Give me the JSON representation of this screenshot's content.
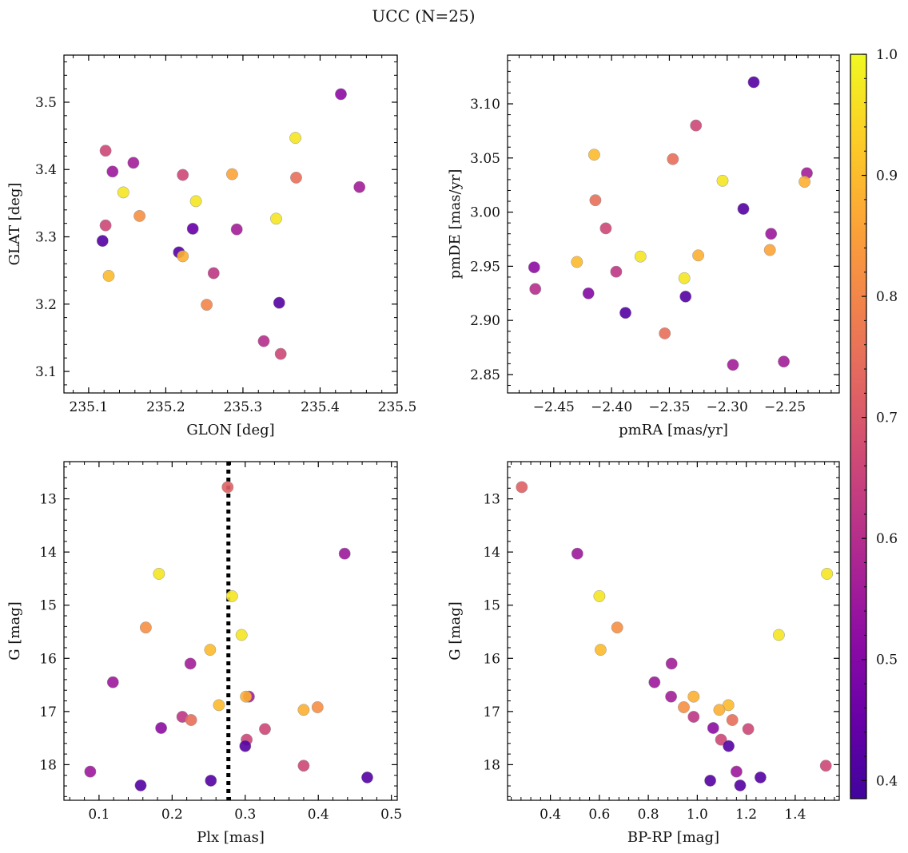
{
  "suptitle": "UCC (N=25)",
  "colorbar": {
    "range": [
      0.385,
      1.0
    ],
    "ticks": [
      0.4,
      0.5,
      0.6,
      0.7,
      0.8,
      0.9,
      1.0
    ],
    "tick_labels": [
      "0.4",
      "0.5",
      "0.6",
      "0.7",
      "0.8",
      "0.9",
      "1.0"
    ],
    "colormap": "plasma"
  },
  "chart_data": [
    {
      "type": "scatter",
      "xlabel": "GLON [deg]",
      "ylabel": "GLAT [deg]",
      "xlim": [
        235.068,
        235.5
      ],
      "ylim": [
        3.068,
        3.57
      ],
      "xticks": [
        235.1,
        235.2,
        235.3,
        235.4,
        235.5
      ],
      "xtick_labels": [
        "235.1",
        "235.2",
        "235.3",
        "235.4",
        "235.5"
      ],
      "yticks": [
        3.1,
        3.2,
        3.3,
        3.4,
        3.5
      ],
      "ytick_labels": [
        "3.1",
        "3.2",
        "3.3",
        "3.4",
        "3.5"
      ],
      "y_inverted": false,
      "points": [
        {
          "x": 235.427,
          "y": 3.512,
          "c": 0.52
        },
        {
          "x": 235.122,
          "y": 3.428,
          "c": 0.66
        },
        {
          "x": 235.368,
          "y": 3.447,
          "c": 0.97
        },
        {
          "x": 235.131,
          "y": 3.397,
          "c": 0.55
        },
        {
          "x": 235.158,
          "y": 3.41,
          "c": 0.56
        },
        {
          "x": 235.222,
          "y": 3.392,
          "c": 0.66
        },
        {
          "x": 235.286,
          "y": 3.393,
          "c": 0.86
        },
        {
          "x": 235.369,
          "y": 3.388,
          "c": 0.75
        },
        {
          "x": 235.451,
          "y": 3.374,
          "c": 0.56
        },
        {
          "x": 235.145,
          "y": 3.366,
          "c": 0.97
        },
        {
          "x": 235.239,
          "y": 3.353,
          "c": 0.97
        },
        {
          "x": 235.122,
          "y": 3.317,
          "c": 0.66
        },
        {
          "x": 235.166,
          "y": 3.331,
          "c": 0.82
        },
        {
          "x": 235.343,
          "y": 3.327,
          "c": 0.97
        },
        {
          "x": 235.118,
          "y": 3.294,
          "c": 0.42
        },
        {
          "x": 235.235,
          "y": 3.312,
          "c": 0.45
        },
        {
          "x": 235.292,
          "y": 3.311,
          "c": 0.56
        },
        {
          "x": 235.217,
          "y": 3.277,
          "c": 0.42
        },
        {
          "x": 235.222,
          "y": 3.271,
          "c": 0.88
        },
        {
          "x": 235.126,
          "y": 3.242,
          "c": 0.9
        },
        {
          "x": 235.262,
          "y": 3.246,
          "c": 0.62
        },
        {
          "x": 235.253,
          "y": 3.199,
          "c": 0.8
        },
        {
          "x": 235.347,
          "y": 3.202,
          "c": 0.42
        },
        {
          "x": 235.327,
          "y": 3.145,
          "c": 0.6
        },
        {
          "x": 235.349,
          "y": 3.126,
          "c": 0.66
        }
      ]
    },
    {
      "type": "scatter",
      "xlabel": "pmRA [mas/yr]",
      "ylabel": "pmDE [mas/yr]",
      "xlim": [
        -2.49,
        -2.203
      ],
      "ylim": [
        2.833,
        3.145
      ],
      "xticks": [
        -2.45,
        -2.4,
        -2.35,
        -2.3,
        -2.25
      ],
      "xtick_labels": [
        "−2.45",
        "−2.40",
        "−2.35",
        "−2.30",
        "−2.25"
      ],
      "yticks": [
        2.85,
        2.9,
        2.95,
        3.0,
        3.05,
        3.1
      ],
      "ytick_labels": [
        "2.85",
        "2.90",
        "2.95",
        "3.00",
        "3.05",
        "3.10"
      ],
      "y_inverted": false,
      "points": [
        {
          "x": -2.277,
          "y": 3.12,
          "c": 0.42
        },
        {
          "x": -2.327,
          "y": 3.08,
          "c": 0.66
        },
        {
          "x": -2.415,
          "y": 3.053,
          "c": 0.9
        },
        {
          "x": -2.347,
          "y": 3.049,
          "c": 0.75
        },
        {
          "x": -2.231,
          "y": 3.036,
          "c": 0.56
        },
        {
          "x": -2.233,
          "y": 3.028,
          "c": 0.88
        },
        {
          "x": -2.304,
          "y": 3.029,
          "c": 0.97
        },
        {
          "x": -2.414,
          "y": 3.011,
          "c": 0.75
        },
        {
          "x": -2.286,
          "y": 3.003,
          "c": 0.42
        },
        {
          "x": -2.405,
          "y": 2.985,
          "c": 0.66
        },
        {
          "x": -2.262,
          "y": 2.98,
          "c": 0.55
        },
        {
          "x": -2.263,
          "y": 2.965,
          "c": 0.86
        },
        {
          "x": -2.375,
          "y": 2.959,
          "c": 0.97
        },
        {
          "x": -2.325,
          "y": 2.96,
          "c": 0.88
        },
        {
          "x": -2.43,
          "y": 2.954,
          "c": 0.9
        },
        {
          "x": -2.467,
          "y": 2.949,
          "c": 0.52
        },
        {
          "x": -2.396,
          "y": 2.945,
          "c": 0.62
        },
        {
          "x": -2.337,
          "y": 2.939,
          "c": 0.97
        },
        {
          "x": -2.466,
          "y": 2.929,
          "c": 0.6
        },
        {
          "x": -2.42,
          "y": 2.925,
          "c": 0.5
        },
        {
          "x": -2.336,
          "y": 2.922,
          "c": 0.42
        },
        {
          "x": -2.388,
          "y": 2.907,
          "c": 0.42
        },
        {
          "x": -2.354,
          "y": 2.888,
          "c": 0.75
        },
        {
          "x": -2.295,
          "y": 2.859,
          "c": 0.56
        },
        {
          "x": -2.251,
          "y": 2.862,
          "c": 0.56
        }
      ]
    },
    {
      "type": "scatter",
      "xlabel": "Plx [mas]",
      "ylabel": "G [mag]",
      "xlim": [
        0.052,
        0.508
      ],
      "ylim": [
        18.67,
        12.3
      ],
      "xticks": [
        0.1,
        0.2,
        0.3,
        0.4,
        0.5
      ],
      "xtick_labels": [
        "0.1",
        "0.2",
        "0.3",
        "0.4",
        "0.5"
      ],
      "yticks": [
        13,
        14,
        15,
        16,
        17,
        18
      ],
      "ytick_labels": [
        "13",
        "14",
        "15",
        "16",
        "17",
        "18"
      ],
      "y_inverted": true,
      "vline": {
        "x": 0.277,
        "style": "dotted",
        "color": "#000000"
      },
      "points": [
        {
          "x": 0.276,
          "y": 12.78,
          "c": 0.72
        },
        {
          "x": 0.436,
          "y": 14.03,
          "c": 0.55
        },
        {
          "x": 0.182,
          "y": 14.41,
          "c": 0.97
        },
        {
          "x": 0.282,
          "y": 14.83,
          "c": 0.97
        },
        {
          "x": 0.164,
          "y": 15.42,
          "c": 0.82
        },
        {
          "x": 0.295,
          "y": 15.56,
          "c": 0.97
        },
        {
          "x": 0.252,
          "y": 15.84,
          "c": 0.9
        },
        {
          "x": 0.225,
          "y": 16.1,
          "c": 0.56
        },
        {
          "x": 0.119,
          "y": 16.45,
          "c": 0.55
        },
        {
          "x": 0.305,
          "y": 16.72,
          "c": 0.56
        },
        {
          "x": 0.301,
          "y": 16.72,
          "c": 0.88
        },
        {
          "x": 0.264,
          "y": 16.88,
          "c": 0.9
        },
        {
          "x": 0.399,
          "y": 16.92,
          "c": 0.82
        },
        {
          "x": 0.38,
          "y": 16.97,
          "c": 0.88
        },
        {
          "x": 0.214,
          "y": 17.1,
          "c": 0.62
        },
        {
          "x": 0.226,
          "y": 17.16,
          "c": 0.75
        },
        {
          "x": 0.185,
          "y": 17.31,
          "c": 0.52
        },
        {
          "x": 0.327,
          "y": 17.33,
          "c": 0.66
        },
        {
          "x": 0.302,
          "y": 17.53,
          "c": 0.66
        },
        {
          "x": 0.3,
          "y": 17.65,
          "c": 0.42
        },
        {
          "x": 0.38,
          "y": 18.02,
          "c": 0.66
        },
        {
          "x": 0.088,
          "y": 18.13,
          "c": 0.55
        },
        {
          "x": 0.467,
          "y": 18.24,
          "c": 0.42
        },
        {
          "x": 0.253,
          "y": 18.3,
          "c": 0.42
        },
        {
          "x": 0.157,
          "y": 18.39,
          "c": 0.42
        }
      ]
    },
    {
      "type": "scatter",
      "xlabel": "BP-RP [mag]",
      "ylabel": "G [mag]",
      "xlim": [
        0.225,
        1.58
      ],
      "ylim": [
        18.67,
        12.3
      ],
      "xticks": [
        0.4,
        0.6,
        0.8,
        1.0,
        1.2,
        1.4
      ],
      "xtick_labels": [
        "0.4",
        "0.6",
        "0.8",
        "1.0",
        "1.2",
        "1.4"
      ],
      "yticks": [
        13,
        14,
        15,
        16,
        17,
        18
      ],
      "ytick_labels": [
        "13",
        "14",
        "15",
        "16",
        "17",
        "18"
      ],
      "y_inverted": true,
      "points": [
        {
          "x": 0.283,
          "y": 12.78,
          "c": 0.72
        },
        {
          "x": 0.51,
          "y": 14.03,
          "c": 0.55
        },
        {
          "x": 1.53,
          "y": 14.41,
          "c": 0.97
        },
        {
          "x": 0.6,
          "y": 14.83,
          "c": 0.97
        },
        {
          "x": 0.673,
          "y": 15.42,
          "c": 0.82
        },
        {
          "x": 1.333,
          "y": 15.56,
          "c": 0.97
        },
        {
          "x": 0.605,
          "y": 15.84,
          "c": 0.9
        },
        {
          "x": 0.895,
          "y": 16.1,
          "c": 0.56
        },
        {
          "x": 0.825,
          "y": 16.45,
          "c": 0.55
        },
        {
          "x": 0.893,
          "y": 16.72,
          "c": 0.56
        },
        {
          "x": 0.985,
          "y": 16.72,
          "c": 0.88
        },
        {
          "x": 1.127,
          "y": 16.88,
          "c": 0.9
        },
        {
          "x": 0.945,
          "y": 16.92,
          "c": 0.82
        },
        {
          "x": 1.09,
          "y": 16.97,
          "c": 0.88
        },
        {
          "x": 0.985,
          "y": 17.1,
          "c": 0.62
        },
        {
          "x": 1.143,
          "y": 17.16,
          "c": 0.75
        },
        {
          "x": 1.065,
          "y": 17.31,
          "c": 0.52
        },
        {
          "x": 1.208,
          "y": 17.33,
          "c": 0.66
        },
        {
          "x": 1.097,
          "y": 17.53,
          "c": 0.66
        },
        {
          "x": 1.128,
          "y": 17.65,
          "c": 0.42
        },
        {
          "x": 1.525,
          "y": 18.02,
          "c": 0.66
        },
        {
          "x": 1.16,
          "y": 18.13,
          "c": 0.55
        },
        {
          "x": 1.258,
          "y": 18.24,
          "c": 0.42
        },
        {
          "x": 1.053,
          "y": 18.3,
          "c": 0.42
        },
        {
          "x": 1.175,
          "y": 18.39,
          "c": 0.42
        }
      ]
    }
  ]
}
